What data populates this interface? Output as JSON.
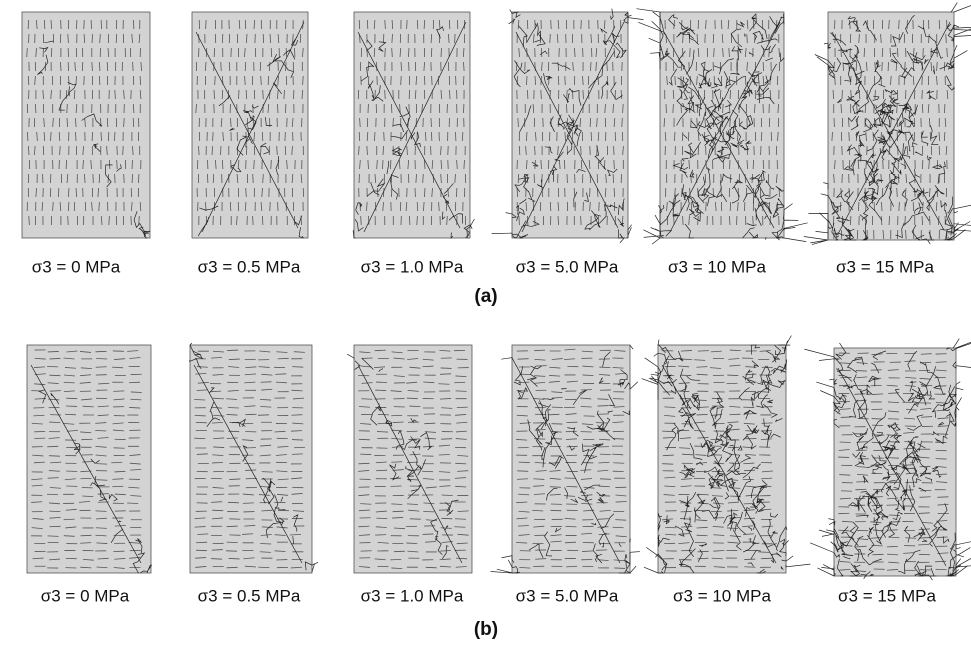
{
  "figure": {
    "panels": [
      {
        "caption": "(a)",
        "labels": [
          "σ3 = 0 MPa",
          "σ3 = 0.5 MPa",
          "σ3 = 1.0 MPa",
          "σ3 = 5.0 MPa",
          "σ3 = 10 MPa",
          "σ3 = 15 MPa"
        ]
      },
      {
        "caption": "(b)",
        "labels": [
          "σ3 = 0 MPa",
          "σ3 = 0.5 MPa",
          "σ3 = 1.0 MPa",
          "σ3 = 5.0 MPa",
          "σ3 = 10 MPa",
          "σ3 = 15 MPa"
        ]
      }
    ]
  }
}
